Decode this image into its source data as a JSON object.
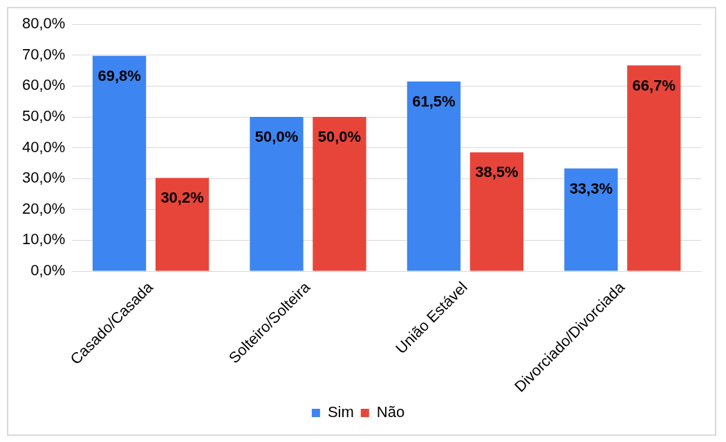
{
  "chart_data": {
    "type": "bar",
    "categories": [
      "Casado/Casada",
      "Solteiro/Solteira",
      "União Estável",
      "Divorciado/Divorciada"
    ],
    "series": [
      {
        "name": "Sim",
        "color": "#3d85f0",
        "values": [
          69.8,
          50.0,
          61.5,
          33.3
        ],
        "value_labels": [
          "69,8%",
          "50,0%",
          "61,5%",
          "33,3%"
        ]
      },
      {
        "name": "Não",
        "color": "#e8453a",
        "values": [
          30.2,
          50.0,
          38.5,
          66.7
        ],
        "value_labels": [
          "30,2%",
          "50,0%",
          "38,5%",
          "66,7%"
        ]
      }
    ],
    "ylim": [
      0,
      80
    ],
    "yticks": [
      {
        "value": 0,
        "label": "0,0%"
      },
      {
        "value": 10,
        "label": "10,0%"
      },
      {
        "value": 20,
        "label": "20,0%"
      },
      {
        "value": 30,
        "label": "30,0%"
      },
      {
        "value": 40,
        "label": "40,0%"
      },
      {
        "value": 50,
        "label": "50,0%"
      },
      {
        "value": 60,
        "label": "60,0%"
      },
      {
        "value": 70,
        "label": "70,0%"
      },
      {
        "value": 80,
        "label": "80,0%"
      }
    ],
    "grid": "y",
    "legend": "bottom"
  }
}
